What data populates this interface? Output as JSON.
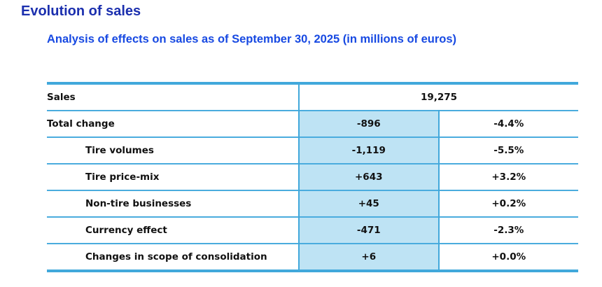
{
  "page": {
    "title": "Evolution of sales",
    "subtitle": "Analysis of effects on sales as of September 30, 2025 (in millions of euros)"
  },
  "colors": {
    "title_blue": "#1b2fae",
    "subtitle_blue": "#1749e2",
    "grid_blue": "#41a8db",
    "highlight_fill_blue": "#bee3f4",
    "text_black": "#111111"
  },
  "table": {
    "header_row": {
      "label": "Sales",
      "value": "19,275"
    },
    "rows": [
      {
        "label": "Total change",
        "value": "-896",
        "pct": "-4.4%",
        "indent": false
      },
      {
        "label": "Tire volumes",
        "value": "-1,119",
        "pct": "-5.5%",
        "indent": true
      },
      {
        "label": "Tire price-mix",
        "value": "+643",
        "pct": "+3.2%",
        "indent": true
      },
      {
        "label": "Non-tire businesses",
        "value": "+45",
        "pct": "+0.2%",
        "indent": true
      },
      {
        "label": "Currency effect",
        "value": "-471",
        "pct": "-2.3%",
        "indent": true
      },
      {
        "label": "Changes in scope of consolidation",
        "value": "+6",
        "pct": "+0.0%",
        "indent": true
      }
    ]
  }
}
